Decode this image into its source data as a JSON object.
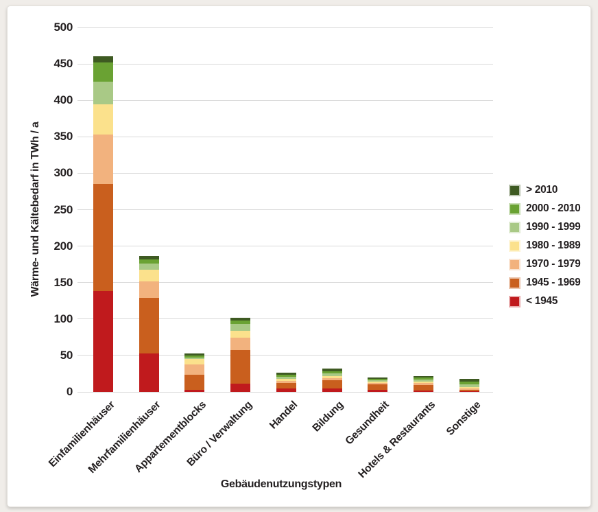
{
  "page": {
    "background_color": "#f0ede9",
    "card_color": "#ffffff",
    "text_color": "#231f20",
    "gridline_color": "#d9d9d9"
  },
  "chart_data": {
    "type": "bar",
    "stacked": true,
    "title": "",
    "xlabel": "Gebäudenutzungstypen",
    "ylabel": "Wärme- und Kältebedarf in TWh / a",
    "ylim": [
      0,
      500
    ],
    "yticks": [
      0,
      50,
      100,
      150,
      200,
      250,
      300,
      350,
      400,
      450,
      500
    ],
    "grid": true,
    "legend_position": "right-center",
    "legend_order_top_to_bottom": [
      "> 2010",
      "2000 - 2010",
      "1990 - 1999",
      "1980 - 1989",
      "1970 - 1979",
      "1945 - 1969",
      "< 1945"
    ],
    "categories": [
      "Einfamilienhäuser",
      "Mehrfamilienhäuser",
      "Appartementblocks",
      "Büro / Verwaltung",
      "Handel",
      "Bildung",
      "Gesundheit",
      "Hotels & Restaurants",
      "Sonstige"
    ],
    "series": [
      {
        "name": "< 1945",
        "color": "#c01a1d",
        "values": [
          138,
          53,
          3,
          11,
          5,
          5,
          3,
          2,
          1
        ]
      },
      {
        "name": "1945 - 1969",
        "color": "#c95f1e",
        "values": [
          147,
          76,
          21,
          46,
          7,
          11,
          7,
          7,
          2
        ]
      },
      {
        "name": "1970 - 1979",
        "color": "#f2b27e",
        "values": [
          68,
          23,
          14,
          17,
          3,
          3,
          2,
          3,
          2
        ]
      },
      {
        "name": "1980 - 1989",
        "color": "#fbe18c",
        "values": [
          42,
          16,
          7,
          10,
          3,
          3,
          2,
          2,
          2
        ]
      },
      {
        "name": "1990 - 1999",
        "color": "#a9c986",
        "values": [
          31,
          8,
          2,
          9,
          3,
          3,
          2,
          3,
          3.5
        ]
      },
      {
        "name": "2000 - 2010",
        "color": "#6aa233",
        "values": [
          26,
          6,
          3,
          5,
          2.5,
          3,
          2,
          3,
          3.5
        ]
      },
      {
        "name": "> 2010",
        "color": "#3e5a22",
        "values": [
          8,
          4,
          3,
          4,
          2.5,
          4,
          2,
          2,
          4
        ]
      }
    ]
  }
}
